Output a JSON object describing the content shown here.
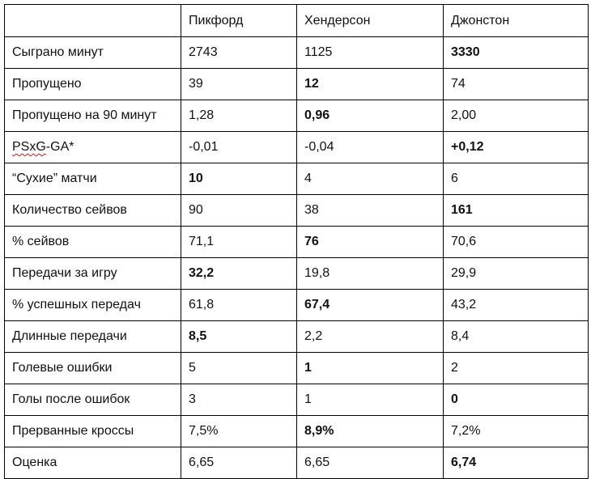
{
  "table": {
    "headers": [
      "",
      "Пикфорд",
      "Хендерсон",
      "Джонстон"
    ],
    "rows": [
      {
        "label": "Сыграно минут",
        "values": [
          "2743",
          "1125",
          "3330"
        ],
        "bold": [
          false,
          false,
          true
        ]
      },
      {
        "label": "Пропущено",
        "values": [
          "39",
          "12",
          "74"
        ],
        "bold": [
          false,
          true,
          false
        ]
      },
      {
        "label": "Пропущено на 90 минут",
        "values": [
          "1,28",
          "0,96",
          "2,00"
        ],
        "bold": [
          false,
          true,
          false
        ]
      },
      {
        "label_prefix": "PSxG",
        "label_suffix": "-GA*",
        "values": [
          "-0,01",
          "-0,04",
          "+0,12"
        ],
        "bold": [
          false,
          false,
          true
        ]
      },
      {
        "label": "“Сухие” матчи",
        "values": [
          "10",
          "4",
          "6"
        ],
        "bold": [
          true,
          false,
          false
        ]
      },
      {
        "label": "Количество сейвов",
        "values": [
          "90",
          "38",
          "161"
        ],
        "bold": [
          false,
          false,
          true
        ]
      },
      {
        "label": "% сейвов",
        "values": [
          "71,1",
          "76",
          "70,6"
        ],
        "bold": [
          false,
          true,
          false
        ]
      },
      {
        "label": "Передачи за игру",
        "values": [
          "32,2",
          "19,8",
          "29,9"
        ],
        "bold": [
          true,
          false,
          false
        ]
      },
      {
        "label": "% успешных передач",
        "values": [
          "61,8",
          "67,4",
          "43,2"
        ],
        "bold": [
          false,
          true,
          false
        ]
      },
      {
        "label": "Длинные передачи",
        "values": [
          "8,5",
          "2,2",
          "8,4"
        ],
        "bold": [
          true,
          false,
          false
        ]
      },
      {
        "label": "Голевые ошибки",
        "values": [
          "5",
          "1",
          "2"
        ],
        "bold": [
          false,
          true,
          false
        ]
      },
      {
        "label": "Голы после ошибок",
        "values": [
          "3",
          "1",
          "0"
        ],
        "bold": [
          false,
          false,
          true
        ]
      },
      {
        "label": "Прерванные кроссы",
        "values": [
          "7,5%",
          "8,9%",
          "7,2%"
        ],
        "bold": [
          false,
          true,
          false
        ]
      },
      {
        "label": "Оценка",
        "values": [
          "6,65",
          "6,65",
          "6,74"
        ],
        "bold": [
          false,
          false,
          true
        ]
      }
    ]
  }
}
